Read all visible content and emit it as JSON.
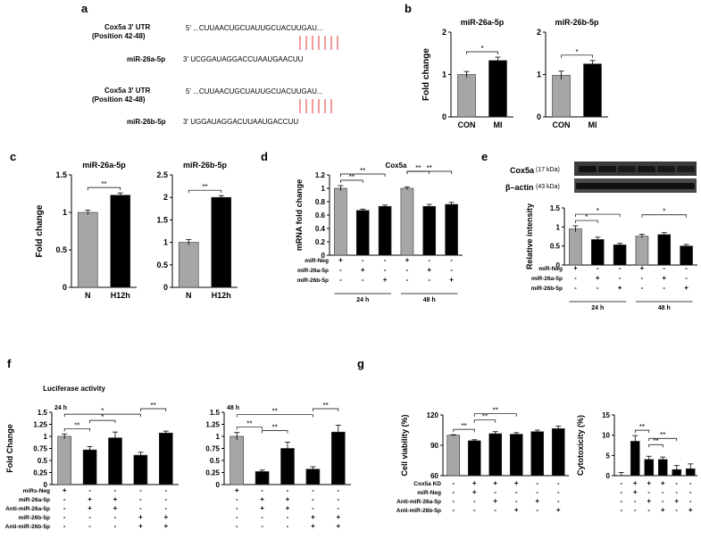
{
  "panels": {
    "a": "a",
    "b": "b",
    "c": "c",
    "d": "d",
    "e": "e",
    "f": "f",
    "g": "g"
  },
  "seq": {
    "cox_utr_label": "Cox5a 3' UTR",
    "position_label": "(Position  42-48)",
    "utr_seq": "5' ...CUUAACUGCUAUUGCUACUUGAU...",
    "mir26a_label": "miR-26a-5p",
    "mir26a_seq": "3'   UCGGAUAGGACCUAAUGAACUU",
    "mir26b_label": "miR-26b-5p",
    "mir26b_seq": "3'   UGGAUAGGACUUAAUGACCUU"
  },
  "blot": {
    "cox5a_label": "Cox5a",
    "cox5a_kda": "(17 kDa)",
    "actin_label": "β–actin",
    "actin_kda": "(43 kDa)"
  },
  "colors": {
    "gray": "#a6a6a6",
    "black": "#000000",
    "red": "#e8393b"
  },
  "chart_data": [
    {
      "id": "b1",
      "type": "bar",
      "title": "miR-26a-5p",
      "ylabel": "Fold change",
      "ylim": [
        0,
        2
      ],
      "yticks": [
        0,
        1,
        2
      ],
      "categories": [
        "CON",
        "MI"
      ],
      "values": [
        1.0,
        1.33
      ],
      "errors": [
        0.07,
        0.08
      ],
      "colors": [
        "gray",
        "black"
      ],
      "sig": [
        {
          "from": 0,
          "to": 1,
          "label": "*"
        }
      ]
    },
    {
      "id": "b2",
      "type": "bar",
      "title": "miR-26b-5p",
      "ylabel": "",
      "ylim": [
        0,
        2
      ],
      "yticks": [
        0,
        1,
        2
      ],
      "categories": [
        "CON",
        "MI"
      ],
      "values": [
        0.98,
        1.25
      ],
      "errors": [
        0.1,
        0.08
      ],
      "colors": [
        "gray",
        "black"
      ],
      "sig": [
        {
          "from": 0,
          "to": 1,
          "label": "*"
        }
      ]
    },
    {
      "id": "c1",
      "type": "bar",
      "title": "miR-26a-5p",
      "ylabel": "Fold change",
      "ylim": [
        0,
        1.5
      ],
      "yticks": [
        0,
        0.5,
        1,
        1.5
      ],
      "categories": [
        "N",
        "H12h"
      ],
      "values": [
        1.0,
        1.23
      ],
      "errors": [
        0.03,
        0.03
      ],
      "colors": [
        "gray",
        "black"
      ],
      "sig": [
        {
          "from": 0,
          "to": 1,
          "label": "**"
        }
      ]
    },
    {
      "id": "c2",
      "type": "bar",
      "title": "miR-26b-5p",
      "ylabel": "",
      "ylim": [
        0,
        2.5
      ],
      "yticks": [
        0,
        0.5,
        1,
        1.5,
        2,
        2.5
      ],
      "categories": [
        "N",
        "H12h"
      ],
      "values": [
        1.0,
        2.0
      ],
      "errors": [
        0.06,
        0.04
      ],
      "colors": [
        "gray",
        "black"
      ],
      "sig": [
        {
          "from": 0,
          "to": 1,
          "label": "**"
        }
      ]
    },
    {
      "id": "d",
      "type": "bar",
      "title": "Cox5a",
      "ylabel": "mRNA fold change",
      "ylim": [
        0,
        1.2
      ],
      "yticks": [
        0,
        0.2,
        0.4,
        0.6,
        0.8,
        1,
        1.2
      ],
      "values": [
        1.0,
        0.67,
        0.73,
        1.0,
        0.73,
        0.76
      ],
      "errors": [
        0.04,
        0.02,
        0.02,
        0.02,
        0.03,
        0.03
      ],
      "colors": [
        "gray",
        "black",
        "black",
        "gray",
        "black",
        "black"
      ],
      "sig": [
        {
          "from": 0,
          "to": 1,
          "label": "**"
        },
        {
          "from": 0,
          "to": 2,
          "label": "**"
        },
        {
          "from": 3,
          "to": 4,
          "label": "**"
        },
        {
          "from": 3,
          "to": 5,
          "label": "**"
        }
      ],
      "rows": [
        {
          "label": "miR-Neg",
          "marks": [
            "+",
            "-",
            "-",
            "+",
            "-",
            "-"
          ]
        },
        {
          "label": "miR-26a-5p",
          "marks": [
            "-",
            "+",
            "-",
            "-",
            "+",
            "-"
          ]
        },
        {
          "label": "miR-26b-5p",
          "marks": [
            "-",
            "-",
            "+",
            "-",
            "-",
            "+"
          ]
        }
      ],
      "groups": [
        {
          "label": "24 h",
          "span": [
            0,
            2
          ]
        },
        {
          "label": "48 h",
          "span": [
            3,
            5
          ]
        }
      ]
    },
    {
      "id": "e",
      "type": "bar",
      "title": "",
      "ylabel": "Relative intensity",
      "ylim": [
        0,
        1.5
      ],
      "yticks": [
        0,
        0.5,
        1,
        1.5
      ],
      "values": [
        0.95,
        0.67,
        0.53,
        0.76,
        0.8,
        0.5
      ],
      "errors": [
        0.08,
        0.06,
        0.04,
        0.05,
        0.05,
        0.04
      ],
      "colors": [
        "gray",
        "black",
        "black",
        "gray",
        "black",
        "black"
      ],
      "sig": [
        {
          "from": 0,
          "to": 1,
          "label": "*"
        },
        {
          "from": 0,
          "to": 2,
          "label": "*"
        },
        {
          "from": 3,
          "to": 5,
          "label": "*"
        }
      ],
      "rows": [
        {
          "label": "miR-Neg",
          "marks": [
            "+",
            "-",
            "-",
            "+",
            "-",
            "-"
          ]
        },
        {
          "label": "miR-26a-5p",
          "marks": [
            "-",
            "+",
            "-",
            "-",
            "+",
            "-"
          ]
        },
        {
          "label": "miR-26b-5p",
          "marks": [
            "-",
            "-",
            "+",
            "-",
            "-",
            "+"
          ]
        }
      ],
      "groups": [
        {
          "label": "24 h",
          "span": [
            0,
            2
          ]
        },
        {
          "label": "48 h",
          "span": [
            3,
            5
          ]
        }
      ]
    },
    {
      "id": "f1",
      "type": "bar",
      "title": "Luciferase  activity",
      "subtitle": "24 h",
      "ylabel": "Fold Change",
      "ylim": [
        0,
        1.5
      ],
      "yticks": [
        0,
        0.25,
        0.5,
        0.75,
        1,
        1.25,
        1.5
      ],
      "values": [
        1.0,
        0.72,
        0.97,
        0.61,
        1.07
      ],
      "errors": [
        0.05,
        0.07,
        0.12,
        0.06,
        0.04
      ],
      "colors": [
        "gray",
        "black",
        "black",
        "black",
        "black"
      ],
      "sig": [
        {
          "from": 0,
          "to": 1,
          "label": "**"
        },
        {
          "from": 1,
          "to": 2,
          "label": "*"
        },
        {
          "from": 0,
          "to": 3,
          "label": "*"
        },
        {
          "from": 3,
          "to": 4,
          "label": "**"
        }
      ],
      "rows": [
        {
          "label": "miRs-Neg",
          "marks": [
            "+",
            "-",
            "-",
            "-",
            "-"
          ]
        },
        {
          "label": "miR-26a-5p",
          "marks": [
            "-",
            "+",
            "+",
            "-",
            "-"
          ]
        },
        {
          "label": "Anti-miR-26a-5p",
          "marks": [
            "-",
            "+",
            "+",
            "-",
            "-"
          ]
        },
        {
          "label": "miR-26b-5p",
          "marks": [
            "-",
            "-",
            "-",
            "+",
            "+"
          ]
        },
        {
          "label": "Anti-miR-26b-5p",
          "marks": [
            "-",
            "-",
            "-",
            "+",
            "+"
          ]
        }
      ]
    },
    {
      "id": "f2",
      "type": "bar",
      "title": "",
      "subtitle": "48 h",
      "ylabel": "",
      "ylim": [
        0,
        1.5
      ],
      "yticks": [
        0,
        0.25,
        0.5,
        0.75,
        1,
        1.25,
        1.5
      ],
      "values": [
        1.0,
        0.27,
        0.75,
        0.32,
        1.09
      ],
      "errors": [
        0.08,
        0.03,
        0.13,
        0.05,
        0.14
      ],
      "colors": [
        "gray",
        "black",
        "black",
        "black",
        "black"
      ],
      "sig": [
        {
          "from": 0,
          "to": 1,
          "label": "**"
        },
        {
          "from": 1,
          "to": 2,
          "label": "**"
        },
        {
          "from": 0,
          "to": 3,
          "label": "**"
        },
        {
          "from": 3,
          "to": 4,
          "label": "**"
        }
      ],
      "rows": [
        {
          "label": "",
          "marks": [
            "+",
            "-",
            "-",
            "-",
            "-"
          ]
        },
        {
          "label": "",
          "marks": [
            "-",
            "+",
            "+",
            "-",
            "-"
          ]
        },
        {
          "label": "",
          "marks": [
            "-",
            "+",
            "+",
            "-",
            "-"
          ]
        },
        {
          "label": "",
          "marks": [
            "-",
            "-",
            "-",
            "+",
            "+"
          ]
        },
        {
          "label": "",
          "marks": [
            "-",
            "-",
            "-",
            "+",
            "+"
          ]
        }
      ]
    },
    {
      "id": "g1",
      "type": "bar",
      "title": "",
      "ylabel": "Cell viability (%)",
      "ylim": [
        60,
        120
      ],
      "yticks": [
        60,
        90,
        120
      ],
      "values": [
        100,
        94.5,
        101.5,
        101,
        103.5,
        106.5
      ],
      "errors": [
        0.5,
        1,
        2,
        1.5,
        1.5,
        2.5
      ],
      "colors": [
        "gray",
        "black",
        "black",
        "black",
        "black",
        "black"
      ],
      "sig": [
        {
          "from": 0,
          "to": 1,
          "label": "**"
        },
        {
          "from": 1,
          "to": 2,
          "label": "**"
        },
        {
          "from": 1,
          "to": 3,
          "label": "**"
        }
      ],
      "rows": [
        {
          "label": "Cox5a KD",
          "marks": [
            "-",
            "+",
            "+",
            "+",
            "-",
            "-"
          ]
        },
        {
          "label": "miR-Neg",
          "marks": [
            "-",
            "+",
            "-",
            "-",
            "-",
            "-"
          ]
        },
        {
          "label": "Anti-miR-26a-5p",
          "marks": [
            "-",
            "-",
            "+",
            "-",
            "+",
            "-"
          ]
        },
        {
          "label": "Anti-miR-26b-5p",
          "marks": [
            "-",
            "-",
            "-",
            "+",
            "-",
            "+"
          ]
        }
      ]
    },
    {
      "id": "g2",
      "type": "bar",
      "title": "",
      "ylabel": "Cytotoxicity (%)",
      "ylim": [
        0,
        15
      ],
      "yticks": [
        0,
        5,
        10,
        15
      ],
      "values": [
        0,
        8.5,
        4.0,
        4.0,
        1.5,
        1.7
      ],
      "errors": [
        0.8,
        1.4,
        0.8,
        0.6,
        1.0,
        1.2
      ],
      "colors": [
        "gray",
        "black",
        "black",
        "black",
        "black",
        "black"
      ],
      "sig": [
        {
          "from": 1,
          "to": 2,
          "label": "**"
        },
        {
          "from": 2,
          "to": 3,
          "label": "**"
        },
        {
          "from": 2,
          "to": 4,
          "label": "**"
        }
      ],
      "rows": [
        {
          "label": "",
          "marks": [
            "-",
            "+",
            "+",
            "+",
            "-",
            "-"
          ]
        },
        {
          "label": "",
          "marks": [
            "-",
            "+",
            "-",
            "-",
            "-",
            "-"
          ]
        },
        {
          "label": "",
          "marks": [
            "-",
            "-",
            "+",
            "-",
            "+",
            "-"
          ]
        },
        {
          "label": "",
          "marks": [
            "-",
            "-",
            "-",
            "+",
            "-",
            "+"
          ]
        }
      ]
    }
  ]
}
